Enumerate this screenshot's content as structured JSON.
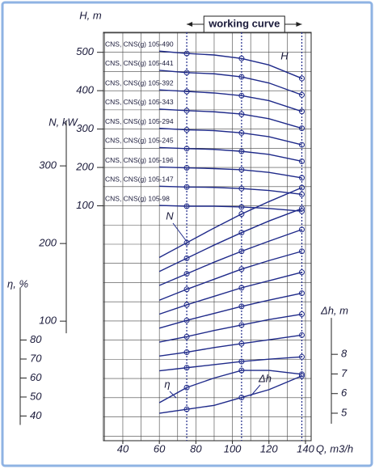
{
  "chart_data": [
    {
      "type": "line",
      "y_label": "H, m",
      "x_label": "Q, m3/h",
      "annotation": "working curve",
      "curve_label": "H",
      "xlim": [
        29.4,
        143.1
      ],
      "xticks": [
        40,
        60,
        80,
        100,
        120,
        140
      ],
      "xgrid": [
        30,
        40,
        50,
        60,
        70,
        80,
        90,
        100,
        110,
        120,
        130,
        140
      ],
      "ylim": [
        -512,
        552
      ],
      "yticks": [
        100,
        200,
        300,
        400,
        500
      ],
      "ygrid": [
        -500,
        -450,
        -400,
        -350,
        -300,
        -250,
        -200,
        -150,
        -100,
        -50,
        0,
        50,
        100,
        150,
        200,
        250,
        300,
        350,
        400,
        450,
        500,
        550
      ],
      "markers": [
        75,
        105,
        138
      ],
      "x": [
        60,
        75,
        90,
        105,
        120,
        138
      ],
      "series": [
        {
          "name": "CNS, CNS(g) 105-490",
          "color": "#1f2a8a",
          "values": [
            503,
            497,
            493,
            484,
            467,
            432
          ]
        },
        {
          "name": "CNS, CNS(g) 105-441",
          "color": "#1f2a8a",
          "values": [
            453,
            447,
            444,
            436,
            420,
            389
          ]
        },
        {
          "name": "CNS, CNS(g) 105-392",
          "color": "#1f2a8a",
          "values": [
            402,
            398,
            394,
            387,
            374,
            346
          ]
        },
        {
          "name": "CNS, CNS(g) 105-343",
          "color": "#1f2a8a",
          "values": [
            352,
            348,
            345,
            339,
            327,
            302
          ]
        },
        {
          "name": "CNS, CNS(g) 105-294",
          "color": "#1f2a8a",
          "values": [
            302,
            298,
            296,
            290,
            280,
            259
          ]
        },
        {
          "name": "CNS, CNS(g) 105-245",
          "color": "#1f2a8a",
          "values": [
            252,
            249,
            247,
            242,
            234,
            216
          ]
        },
        {
          "name": "CNS, CNS(g) 105-196",
          "color": "#1f2a8a",
          "values": [
            201,
            199,
            197,
            194,
            187,
            173
          ]
        },
        {
          "name": "CNS, CNS(g) 105-147",
          "color": "#1f2a8a",
          "values": [
            151,
            149,
            148,
            145,
            140,
            130
          ]
        },
        {
          "name": "CNS, CNS(g) 105-98",
          "color": "#1f2a8a",
          "values": [
            101,
            99,
            99,
            97,
            93,
            86
          ]
        }
      ]
    },
    {
      "type": "line",
      "y_label": "N, kW",
      "curve_label": "N",
      "ylim": [
        -54,
        472
      ],
      "yticks": [
        100,
        200,
        300
      ],
      "x": [
        60,
        75,
        90,
        105,
        120,
        138
      ],
      "series": [
        {
          "color": "#1f2a8a",
          "values": [
            182,
            201,
            220,
            238,
            254,
            272
          ]
        },
        {
          "color": "#1f2a8a",
          "values": [
            164,
            181,
            198,
            214,
            229,
            245
          ]
        },
        {
          "color": "#1f2a8a",
          "values": [
            146,
            161,
            176,
            190,
            203,
            218
          ]
        },
        {
          "color": "#1f2a8a",
          "values": [
            127,
            141,
            154,
            167,
            178,
            190
          ]
        },
        {
          "color": "#1f2a8a",
          "values": [
            109,
            121,
            132,
            143,
            152,
            163
          ]
        },
        {
          "color": "#1f2a8a",
          "values": [
            91,
            101,
            110,
            119,
            127,
            136
          ]
        },
        {
          "color": "#1f2a8a",
          "values": [
            73,
            80,
            88,
            95,
            102,
            109
          ]
        },
        {
          "color": "#1f2a8a",
          "values": [
            55,
            60,
            66,
            71,
            76,
            82
          ]
        },
        {
          "color": "#1f2a8a",
          "values": [
            36,
            40,
            44,
            48,
            51,
            54
          ]
        }
      ]
    },
    {
      "type": "line",
      "y_label": "η, %",
      "curve_label": "η",
      "ylim": [
        27,
        242
      ],
      "yticks": [
        40,
        50,
        60,
        70,
        80
      ],
      "x": [
        60,
        75,
        90,
        105,
        120,
        138
      ],
      "series": [
        {
          "color": "#1f2a8a",
          "values": [
            47,
            55,
            60,
            64,
            64,
            62
          ]
        }
      ]
    },
    {
      "type": "line",
      "y_label": "Δh, m",
      "curve_label": "Δh",
      "ylim": [
        3.6,
        24.4
      ],
      "yticks": [
        5,
        6,
        7,
        8
      ],
      "x": [
        60,
        75,
        90,
        105,
        120,
        138
      ],
      "series": [
        {
          "color": "#1f2a8a",
          "values": [
            5.0,
            5.2,
            5.4,
            5.8,
            6.2,
            6.9
          ]
        }
      ]
    }
  ]
}
